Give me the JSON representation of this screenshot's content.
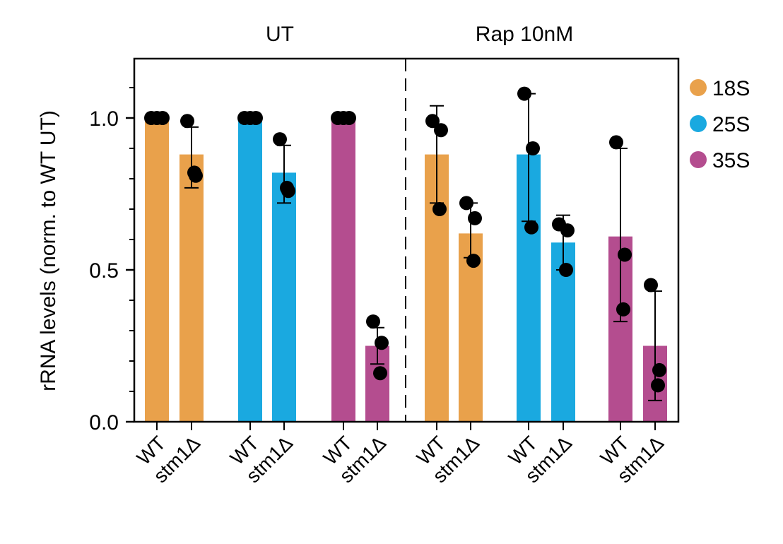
{
  "chart_data": {
    "type": "bar",
    "ylabel": "rRNA levels (norm. to WT UT)",
    "ylim": [
      0,
      1.2
    ],
    "yticks": [
      0.0,
      0.5,
      1.0
    ],
    "ytick_labels": [
      "0.0",
      "0.5",
      "1.0"
    ],
    "groups": [
      {
        "label": "UT",
        "name": "ut"
      },
      {
        "label": "Rap 10nM",
        "name": "rap"
      }
    ],
    "legend": [
      {
        "label": "18S",
        "color": "#e9a14b"
      },
      {
        "label": "25S",
        "color": "#1aa9e0"
      },
      {
        "label": "35S",
        "color": "#b44d8f"
      }
    ],
    "bars": [
      {
        "group": "UT",
        "category": "WT",
        "rna": "18S",
        "value": 1.0,
        "err": [
          1.0,
          1.0
        ],
        "points": [
          1.0,
          1.0,
          1.0
        ]
      },
      {
        "group": "UT",
        "category": "stm1Δ",
        "rna": "18S",
        "value": 0.88,
        "err": [
          0.77,
          0.97
        ],
        "points": [
          0.99,
          0.81,
          0.82
        ]
      },
      {
        "group": "UT",
        "category": "WT",
        "rna": "25S",
        "value": 1.0,
        "err": [
          1.0,
          1.0
        ],
        "points": [
          1.0,
          1.0,
          1.0
        ]
      },
      {
        "group": "UT",
        "category": "stm1Δ",
        "rna": "25S",
        "value": 0.82,
        "err": [
          0.72,
          0.91
        ],
        "points": [
          0.93,
          0.76,
          0.77
        ]
      },
      {
        "group": "UT",
        "category": "WT",
        "rna": "35S",
        "value": 1.0,
        "err": [
          1.0,
          1.0
        ],
        "points": [
          1.0,
          1.0,
          1.0
        ]
      },
      {
        "group": "UT",
        "category": "stm1Δ",
        "rna": "35S",
        "value": 0.25,
        "err": [
          0.19,
          0.31
        ],
        "points": [
          0.33,
          0.26,
          0.16
        ]
      },
      {
        "group": "Rap 10nM",
        "category": "WT",
        "rna": "18S",
        "value": 0.88,
        "err": [
          0.72,
          1.04
        ],
        "points": [
          0.99,
          0.96,
          0.7
        ]
      },
      {
        "group": "Rap 10nM",
        "category": "stm1Δ",
        "rna": "18S",
        "value": 0.62,
        "err": [
          0.54,
          0.72
        ],
        "points": [
          0.72,
          0.67,
          0.53
        ]
      },
      {
        "group": "Rap 10nM",
        "category": "WT",
        "rna": "25S",
        "value": 0.88,
        "err": [
          0.66,
          1.08
        ],
        "points": [
          1.08,
          0.9,
          0.64
        ]
      },
      {
        "group": "Rap 10nM",
        "category": "stm1Δ",
        "rna": "25S",
        "value": 0.59,
        "err": [
          0.5,
          0.68
        ],
        "points": [
          0.65,
          0.63,
          0.5
        ]
      },
      {
        "group": "Rap 10nM",
        "category": "WT",
        "rna": "35S",
        "value": 0.61,
        "err": [
          0.33,
          0.9
        ],
        "points": [
          0.92,
          0.55,
          0.37
        ]
      },
      {
        "group": "Rap 10nM",
        "category": "stm1Δ",
        "rna": "35S",
        "value": 0.25,
        "err": [
          0.07,
          0.43
        ],
        "points": [
          0.45,
          0.17,
          0.12
        ]
      }
    ]
  }
}
